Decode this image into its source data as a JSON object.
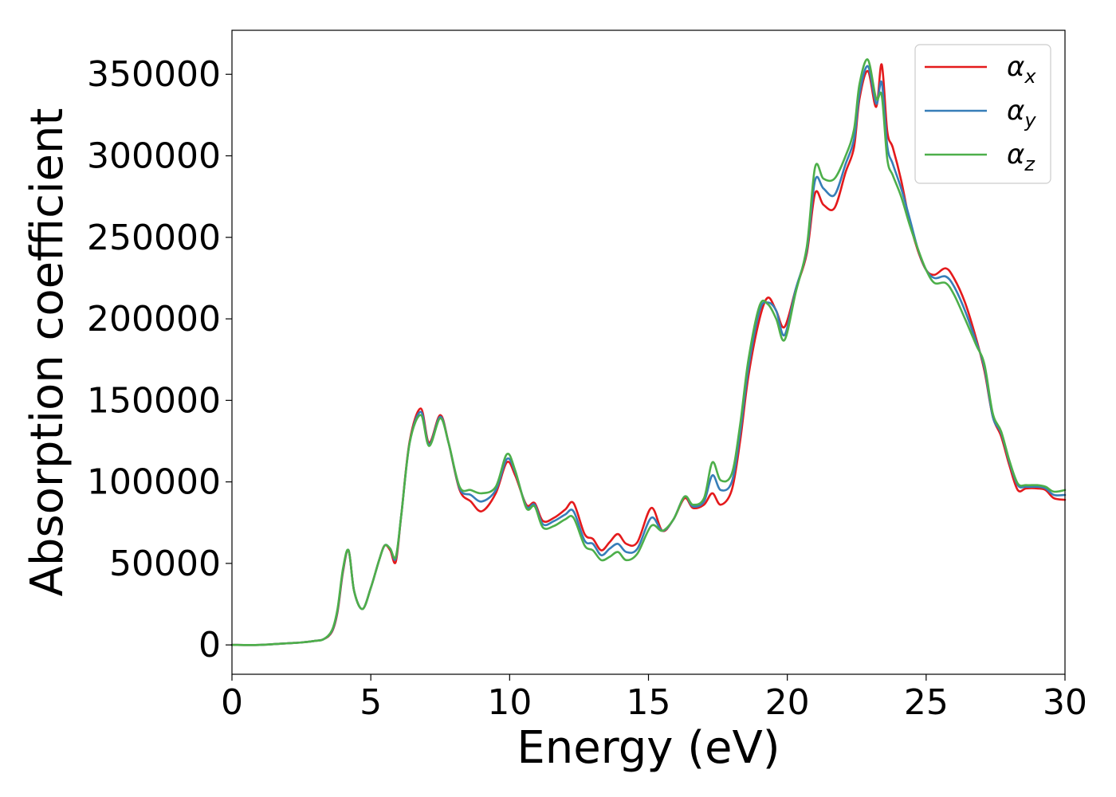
{
  "chart_data": {
    "type": "line",
    "xlabel": "Energy (eV)",
    "ylabel": "Absorption coefficient",
    "xlim": [
      0,
      30
    ],
    "ylim": [
      -18000,
      377000
    ],
    "xticks": [
      "0",
      "5",
      "10",
      "15",
      "20",
      "25",
      "30"
    ],
    "yticks": [
      "0",
      "50000",
      "100000",
      "150000",
      "200000",
      "250000",
      "300000",
      "350000"
    ],
    "grid": false,
    "legend_position": "top-right",
    "series": [
      {
        "name": "αx",
        "legend_symbol": "α",
        "legend_sub": "x",
        "color": "#e41a1c",
        "x": [
          0,
          1,
          2,
          2.5,
          3,
          3.3,
          3.6,
          3.8,
          4.0,
          4.2,
          4.4,
          4.7,
          5.0,
          5.3,
          5.5,
          5.7,
          5.9,
          6.1,
          6.4,
          6.8,
          7.1,
          7.5,
          7.8,
          8.2,
          8.6,
          9.0,
          9.5,
          9.9,
          10.2,
          10.6,
          10.9,
          11.2,
          11.6,
          12.0,
          12.3,
          12.7,
          13.0,
          13.3,
          13.6,
          13.9,
          14.2,
          14.6,
          15.1,
          15.5,
          15.9,
          16.3,
          16.6,
          17.0,
          17.3,
          17.6,
          18.0,
          18.3,
          18.6,
          19.0,
          19.3,
          19.6,
          19.9,
          20.3,
          20.7,
          21.0,
          21.3,
          21.7,
          22.1,
          22.4,
          22.6,
          22.9,
          23.2,
          23.4,
          23.6,
          23.8,
          24.1,
          24.4,
          24.7,
          25.0,
          25.3,
          25.7,
          26.0,
          26.4,
          26.8,
          27.1,
          27.4,
          27.7,
          28.0,
          28.3,
          28.6,
          29.0,
          29.3,
          29.6,
          30.0
        ],
        "y": [
          0,
          0,
          1000,
          1500,
          2500,
          3500,
          8000,
          20000,
          45000,
          58000,
          33000,
          22000,
          35000,
          52000,
          61000,
          58000,
          51000,
          80000,
          125000,
          145000,
          124000,
          141000,
          124000,
          95000,
          88000,
          82000,
          93000,
          112000,
          104000,
          86000,
          87000,
          76000,
          78000,
          83000,
          87000,
          68000,
          65000,
          58000,
          63000,
          68000,
          62000,
          63000,
          84000,
          70000,
          77000,
          90000,
          84000,
          86000,
          93000,
          86000,
          95000,
          125000,
          165000,
          200000,
          213000,
          205000,
          195000,
          218000,
          240000,
          277000,
          270000,
          268000,
          290000,
          305000,
          335000,
          352000,
          330000,
          356000,
          315000,
          305000,
          285000,
          260000,
          242000,
          230000,
          227000,
          231000,
          225000,
          210000,
          188000,
          168000,
          140000,
          128000,
          110000,
          95000,
          96000,
          96000,
          95000,
          90000,
          89000
        ]
      },
      {
        "name": "αy",
        "legend_symbol": "α",
        "legend_sub": "y",
        "color": "#377eb8",
        "x": [
          0,
          1,
          2,
          2.5,
          3,
          3.3,
          3.6,
          3.8,
          4.0,
          4.2,
          4.4,
          4.7,
          5.0,
          5.3,
          5.5,
          5.7,
          5.9,
          6.1,
          6.4,
          6.8,
          7.1,
          7.5,
          7.8,
          8.2,
          8.6,
          9.0,
          9.5,
          9.9,
          10.2,
          10.6,
          10.9,
          11.2,
          11.6,
          12.0,
          12.3,
          12.7,
          13.0,
          13.3,
          13.6,
          13.9,
          14.2,
          14.6,
          15.1,
          15.5,
          15.9,
          16.3,
          16.6,
          17.0,
          17.3,
          17.6,
          18.0,
          18.3,
          18.6,
          19.0,
          19.3,
          19.6,
          19.9,
          20.3,
          20.7,
          21.0,
          21.3,
          21.7,
          22.1,
          22.4,
          22.6,
          22.9,
          23.2,
          23.4,
          23.6,
          23.8,
          24.1,
          24.4,
          24.7,
          25.0,
          25.3,
          25.7,
          26.0,
          26.4,
          26.8,
          27.1,
          27.4,
          27.7,
          28.0,
          28.3,
          28.6,
          29.0,
          29.3,
          29.6,
          30.0
        ],
        "y": [
          0,
          0,
          1000,
          1500,
          2500,
          3500,
          8500,
          21000,
          46000,
          58000,
          33000,
          22000,
          35000,
          52000,
          61000,
          59000,
          53000,
          80000,
          124000,
          143000,
          123000,
          140000,
          124000,
          96000,
          92000,
          88000,
          95000,
          114000,
          106000,
          85000,
          86000,
          74000,
          76000,
          80000,
          82000,
          64000,
          62000,
          55000,
          59000,
          62000,
          57000,
          59000,
          78000,
          70000,
          77000,
          91000,
          85000,
          88000,
          104000,
          95000,
          100000,
          130000,
          170000,
          205000,
          210000,
          205000,
          190000,
          218000,
          242000,
          285000,
          280000,
          276000,
          295000,
          310000,
          338000,
          355000,
          332000,
          345000,
          306000,
          295000,
          280000,
          262000,
          243000,
          230000,
          225000,
          226000,
          220000,
          205000,
          186000,
          170000,
          140000,
          130000,
          112000,
          98000,
          97000,
          97000,
          96000,
          92000,
          92000
        ]
      },
      {
        "name": "αz",
        "legend_symbol": "α",
        "legend_sub": "z",
        "color": "#4daf4a",
        "x": [
          0,
          1,
          2,
          2.5,
          3,
          3.3,
          3.6,
          3.8,
          4.0,
          4.2,
          4.4,
          4.7,
          5.0,
          5.3,
          5.5,
          5.7,
          5.9,
          6.1,
          6.4,
          6.8,
          7.1,
          7.5,
          7.8,
          8.2,
          8.6,
          9.0,
          9.5,
          9.9,
          10.2,
          10.6,
          10.9,
          11.2,
          11.6,
          12.0,
          12.3,
          12.7,
          13.0,
          13.3,
          13.6,
          13.9,
          14.2,
          14.6,
          15.1,
          15.5,
          15.9,
          16.3,
          16.6,
          17.0,
          17.3,
          17.6,
          18.0,
          18.3,
          18.6,
          19.0,
          19.3,
          19.6,
          19.9,
          20.3,
          20.7,
          21.0,
          21.3,
          21.7,
          22.1,
          22.4,
          22.6,
          22.9,
          23.2,
          23.4,
          23.6,
          23.8,
          24.1,
          24.4,
          24.7,
          25.0,
          25.3,
          25.7,
          26.0,
          26.4,
          26.8,
          27.1,
          27.4,
          27.7,
          28.0,
          28.3,
          28.6,
          29.0,
          29.3,
          29.6,
          30.0
        ],
        "y": [
          0,
          0,
          1000,
          1500,
          2500,
          3500,
          9000,
          22000,
          47000,
          58000,
          33000,
          22000,
          35000,
          52000,
          61000,
          59000,
          54000,
          80000,
          124000,
          141000,
          122000,
          139000,
          124000,
          97000,
          95000,
          93000,
          97000,
          117000,
          107000,
          84000,
          85000,
          72000,
          73000,
          77000,
          78000,
          61000,
          58000,
          52000,
          54000,
          57000,
          52000,
          56000,
          73000,
          70000,
          77000,
          91000,
          86000,
          90000,
          112000,
          101000,
          105000,
          135000,
          175000,
          208000,
          209000,
          200000,
          187000,
          216000,
          244000,
          293000,
          286000,
          286000,
          300000,
          316000,
          344000,
          359000,
          335000,
          337000,
          298000,
          288000,
          275000,
          258000,
          243000,
          230000,
          222000,
          222000,
          215000,
          200000,
          184000,
          172000,
          142000,
          131000,
          113000,
          99000,
          98000,
          98000,
          97000,
          94000,
          95000
        ]
      }
    ]
  }
}
